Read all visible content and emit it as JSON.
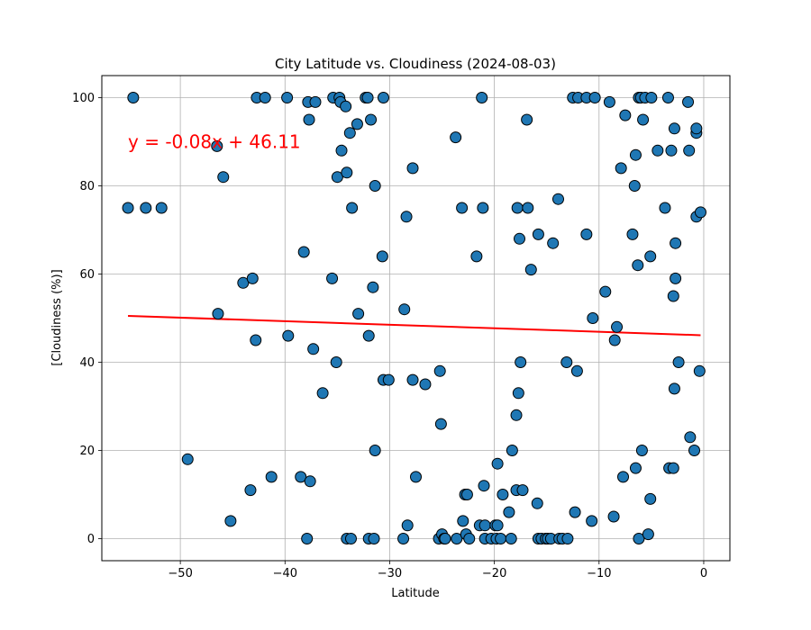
{
  "chart_data": {
    "type": "scatter",
    "title": "City Latitude vs. Cloudiness (2024-08-03)",
    "xlabel": "Latitude",
    "ylabel": "[Cloudiness (%)]",
    "xlim": [
      -57.5,
      2.5
    ],
    "ylim": [
      -5,
      105
    ],
    "xticks": [
      -50,
      -40,
      -30,
      -20,
      -10,
      0
    ],
    "yticks": [
      0,
      20,
      40,
      60,
      80,
      100
    ],
    "grid": true,
    "point_color": "#1f77b4",
    "point_edge_color": "#000000",
    "annotation": {
      "text": "y = -0.08x + 46.11",
      "color": "#ff0000",
      "x": -55,
      "y": 90
    },
    "regression": {
      "slope": -0.08,
      "intercept": 46.11,
      "x_range": [
        -55,
        -0.3
      ],
      "color": "#ff0000"
    },
    "points": [
      [
        -55.0,
        75
      ],
      [
        -54.5,
        100
      ],
      [
        -53.3,
        75
      ],
      [
        -51.8,
        75
      ],
      [
        -49.3,
        18
      ],
      [
        -46.5,
        89
      ],
      [
        -46.4,
        51
      ],
      [
        -45.9,
        82
      ],
      [
        -45.2,
        4
      ],
      [
        -44.0,
        58
      ],
      [
        -43.3,
        11
      ],
      [
        -43.1,
        59
      ],
      [
        -42.8,
        45
      ],
      [
        -42.7,
        100
      ],
      [
        -41.9,
        100
      ],
      [
        -41.3,
        14
      ],
      [
        -39.8,
        100
      ],
      [
        -39.7,
        46
      ],
      [
        -38.5,
        14
      ],
      [
        -38.2,
        65
      ],
      [
        -37.9,
        0
      ],
      [
        -37.8,
        99
      ],
      [
        -37.7,
        95
      ],
      [
        -37.6,
        13
      ],
      [
        -37.3,
        43
      ],
      [
        -37.1,
        99
      ],
      [
        -36.4,
        33
      ],
      [
        -35.5,
        59
      ],
      [
        -35.4,
        100
      ],
      [
        -35.1,
        40
      ],
      [
        -35.0,
        82
      ],
      [
        -34.8,
        100
      ],
      [
        -34.7,
        99
      ],
      [
        -34.6,
        88
      ],
      [
        -34.2,
        98
      ],
      [
        -34.1,
        0
      ],
      [
        -34.1,
        83
      ],
      [
        -33.8,
        92
      ],
      [
        -33.7,
        0
      ],
      [
        -33.6,
        75
      ],
      [
        -33.1,
        94
      ],
      [
        -33.0,
        51
      ],
      [
        -32.3,
        100
      ],
      [
        -32.1,
        100
      ],
      [
        -32.0,
        46
      ],
      [
        -32.0,
        0
      ],
      [
        -31.8,
        95
      ],
      [
        -31.6,
        57
      ],
      [
        -31.5,
        0
      ],
      [
        -31.4,
        80
      ],
      [
        -31.4,
        20
      ],
      [
        -30.7,
        64
      ],
      [
        -30.6,
        100
      ],
      [
        -30.6,
        36
      ],
      [
        -30.1,
        36
      ],
      [
        -28.7,
        0
      ],
      [
        -28.6,
        52
      ],
      [
        -28.4,
        73
      ],
      [
        -28.3,
        3
      ],
      [
        -27.8,
        84
      ],
      [
        -27.8,
        36
      ],
      [
        -27.5,
        14
      ],
      [
        -26.6,
        35
      ],
      [
        -25.3,
        0
      ],
      [
        -25.2,
        38
      ],
      [
        -25.1,
        26
      ],
      [
        -25.0,
        1
      ],
      [
        -24.8,
        0
      ],
      [
        -24.7,
        0
      ],
      [
        -23.7,
        91
      ],
      [
        -23.6,
        0
      ],
      [
        -23.1,
        75
      ],
      [
        -23.0,
        4
      ],
      [
        -22.8,
        10
      ],
      [
        -22.7,
        1
      ],
      [
        -22.6,
        10
      ],
      [
        -22.4,
        0
      ],
      [
        -21.7,
        64
      ],
      [
        -21.4,
        3
      ],
      [
        -21.2,
        100
      ],
      [
        -21.1,
        75
      ],
      [
        -21.0,
        12
      ],
      [
        -20.9,
        0
      ],
      [
        -20.9,
        3
      ],
      [
        -20.3,
        0
      ],
      [
        -19.9,
        3
      ],
      [
        -19.8,
        0
      ],
      [
        -19.7,
        17
      ],
      [
        -19.7,
        3
      ],
      [
        -19.4,
        0
      ],
      [
        -19.2,
        10
      ],
      [
        -18.6,
        6
      ],
      [
        -18.4,
        0
      ],
      [
        -18.3,
        20
      ],
      [
        -17.9,
        11
      ],
      [
        -17.9,
        28
      ],
      [
        -17.8,
        75
      ],
      [
        -17.7,
        33
      ],
      [
        -17.6,
        68
      ],
      [
        -17.5,
        40
      ],
      [
        -17.3,
        11
      ],
      [
        -16.9,
        95
      ],
      [
        -16.8,
        75
      ],
      [
        -16.5,
        61
      ],
      [
        -15.9,
        8
      ],
      [
        -15.8,
        69
      ],
      [
        -15.8,
        0
      ],
      [
        -15.5,
        0
      ],
      [
        -15.1,
        0
      ],
      [
        -14.9,
        0
      ],
      [
        -14.6,
        0
      ],
      [
        -14.4,
        67
      ],
      [
        -13.9,
        77
      ],
      [
        -13.8,
        0
      ],
      [
        -13.5,
        0
      ],
      [
        -13.1,
        40
      ],
      [
        -13.0,
        0
      ],
      [
        -12.5,
        100
      ],
      [
        -12.3,
        6
      ],
      [
        -12.1,
        38
      ],
      [
        -12.0,
        100
      ],
      [
        -11.2,
        100
      ],
      [
        -11.2,
        69
      ],
      [
        -10.7,
        4
      ],
      [
        -10.6,
        50
      ],
      [
        -10.4,
        100
      ],
      [
        -9.4,
        56
      ],
      [
        -9.0,
        99
      ],
      [
        -8.6,
        5
      ],
      [
        -8.5,
        45
      ],
      [
        -8.3,
        48
      ],
      [
        -7.9,
        84
      ],
      [
        -7.7,
        14
      ],
      [
        -7.5,
        96
      ],
      [
        -6.8,
        69
      ],
      [
        -6.6,
        80
      ],
      [
        -6.5,
        16
      ],
      [
        -6.5,
        87
      ],
      [
        -6.3,
        62
      ],
      [
        -6.2,
        100
      ],
      [
        -6.2,
        0
      ],
      [
        -6.0,
        100
      ],
      [
        -5.9,
        20
      ],
      [
        -5.8,
        95
      ],
      [
        -5.6,
        100
      ],
      [
        -5.3,
        1
      ],
      [
        -5.1,
        9
      ],
      [
        -5.1,
        64
      ],
      [
        -5.0,
        100
      ],
      [
        -4.4,
        88
      ],
      [
        -3.7,
        75
      ],
      [
        -3.4,
        100
      ],
      [
        -3.3,
        16
      ],
      [
        -3.1,
        88
      ],
      [
        -2.9,
        55
      ],
      [
        -2.9,
        16
      ],
      [
        -2.8,
        34
      ],
      [
        -2.8,
        93
      ],
      [
        -2.7,
        59
      ],
      [
        -2.7,
        67
      ],
      [
        -2.4,
        40
      ],
      [
        -1.5,
        99
      ],
      [
        -1.4,
        88
      ],
      [
        -1.3,
        23
      ],
      [
        -0.9,
        20
      ],
      [
        -0.7,
        92
      ],
      [
        -0.7,
        93
      ],
      [
        -0.7,
        73
      ],
      [
        -0.4,
        38
      ],
      [
        -0.3,
        74
      ]
    ]
  }
}
